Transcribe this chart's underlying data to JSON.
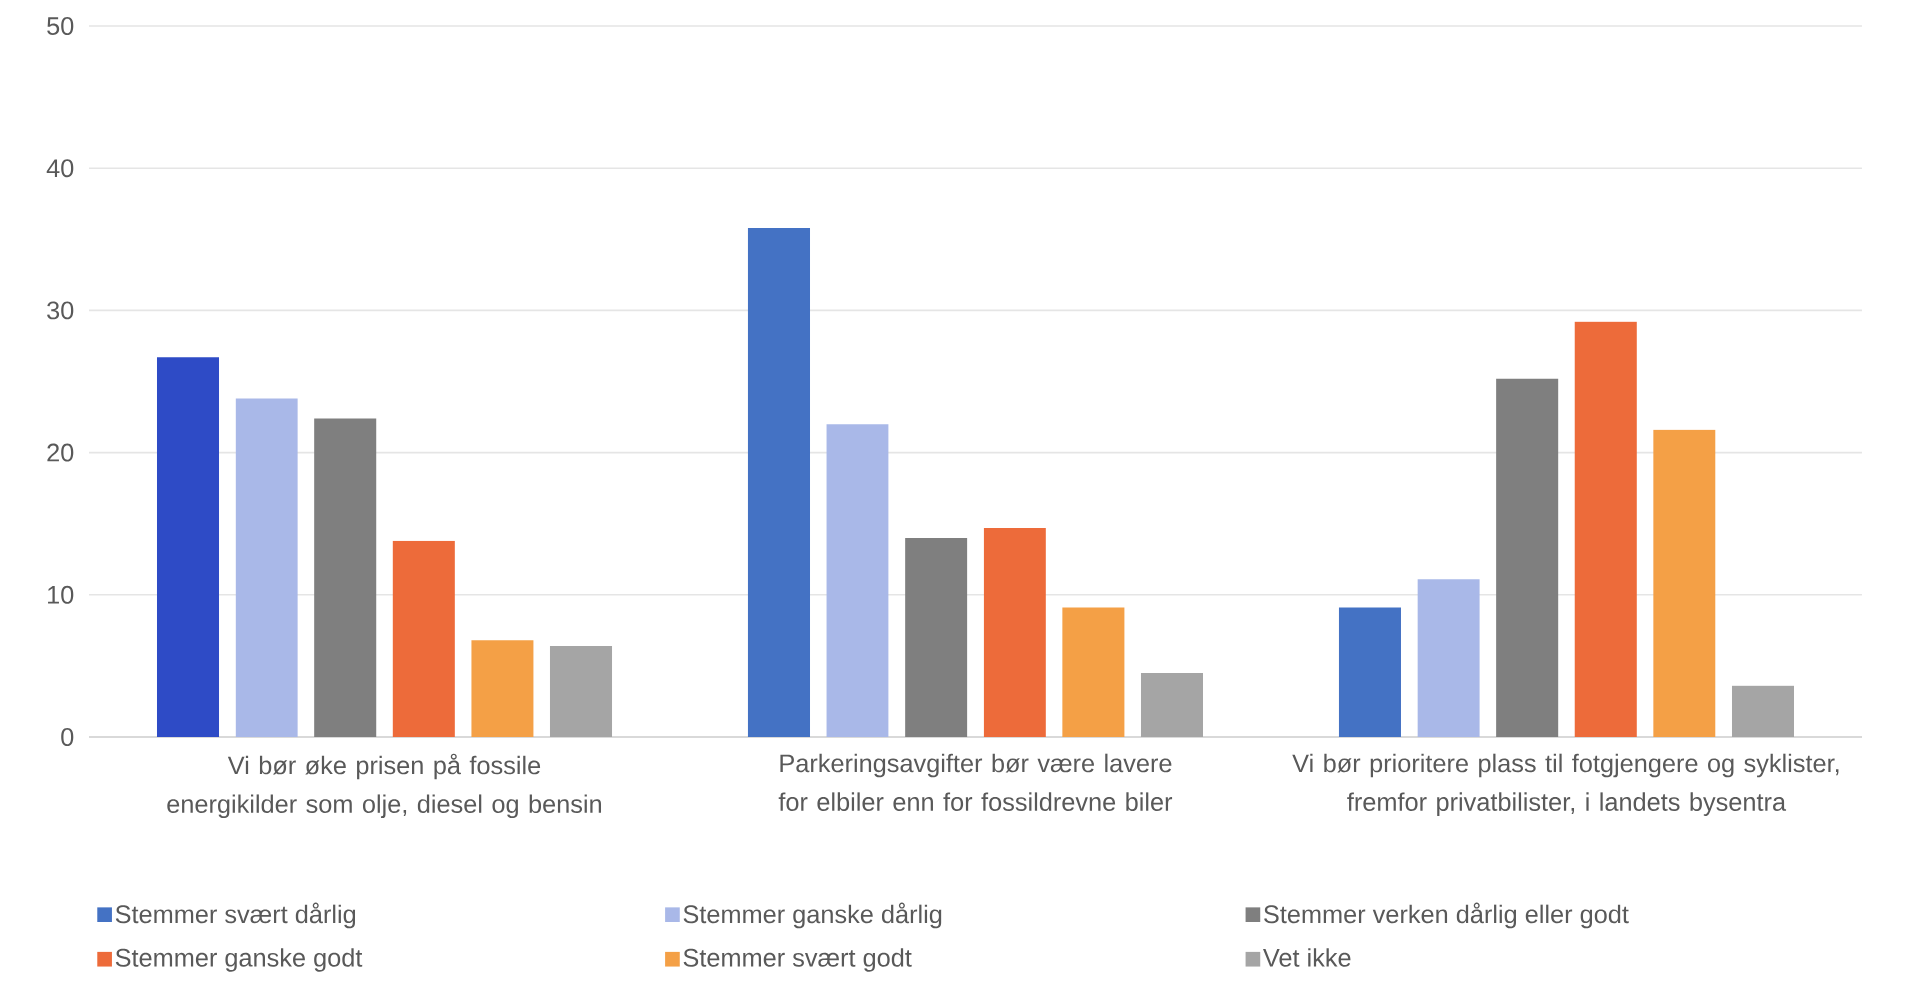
{
  "chart_data": {
    "type": "bar",
    "categories": [
      "Vi bør øke prisen på fossile energikilder som olje, diesel og bensin",
      "Parkeringsavgifter bør være lavere for elbiler enn for fossildrevne biler",
      "Vi bør prioritere plass til fotgjengere og syklister, fremfor privatbilister, i landets bysentra"
    ],
    "series": [
      {
        "name": "Stemmer svært dårlig",
        "color": "#4472c4",
        "colors": [
          "#2e4bc6",
          "#4472c4",
          "#4472c4"
        ],
        "values": [
          26.7,
          35.8,
          9.1
        ]
      },
      {
        "name": "Stemmer ganske dårlig",
        "color": "#a9b8e8",
        "values": [
          23.8,
          22.0,
          11.1
        ]
      },
      {
        "name": "Stemmer verken dårlig eller godt",
        "color": "#7f7f7f",
        "values": [
          22.4,
          14.0,
          25.2
        ]
      },
      {
        "name": "Stemmer ganske godt",
        "color": "#ed6b3a",
        "values": [
          13.8,
          14.7,
          29.2
        ]
      },
      {
        "name": "Stemmer svært godt",
        "color": "#f4a046",
        "values": [
          6.8,
          9.1,
          21.6
        ]
      },
      {
        "name": "Vet ikke",
        "color": "#a5a5a5",
        "values": [
          6.4,
          4.5,
          3.6
        ]
      }
    ],
    "ylim": [
      0,
      50
    ],
    "yticks": [
      0,
      10,
      20,
      30,
      40,
      50
    ],
    "grid": "y",
    "legend": "bottom"
  }
}
